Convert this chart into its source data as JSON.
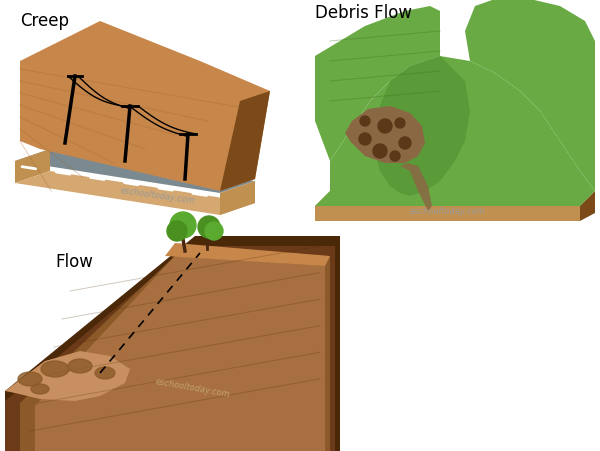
{
  "background_color": "#ffffff",
  "labels": {
    "creep": "Creep",
    "debris_flow": "Debris Flow",
    "flow": "Flow",
    "watermark": "eschooltoday.com"
  },
  "colors": {
    "soil_main": "#C8874A",
    "soil_light": "#D4A070",
    "soil_dark": "#A0622A",
    "soil_shadow": "#7B4A18",
    "soil_side": "#B07040",
    "road_gray": "#7A8A90",
    "road_dark": "#606870",
    "base_tan": "#D4A870",
    "base_tan_dark": "#C09050",
    "base_tan_side": "#B07838",
    "green_bright": "#6AAA44",
    "green_mid": "#5A9A38",
    "green_dark": "#3A7020",
    "green_shadow": "#4A8030",
    "debris_brown": "#8B6844",
    "debris_dark": "#5A3818",
    "dark_brown": "#4A2810",
    "flow_dark1": "#4A2808",
    "flow_dark2": "#6B3A18",
    "flow_mid": "#8B5A28",
    "flow_light": "#A87040",
    "flow_lightest": "#C89060",
    "tree_green": "#4A9020",
    "tree_green2": "#5AAA30",
    "tree_trunk": "#4A2810",
    "white": "#ffffff",
    "black": "#000000",
    "watermark_creep": "#999999",
    "watermark_flow": "#C0A070"
  }
}
